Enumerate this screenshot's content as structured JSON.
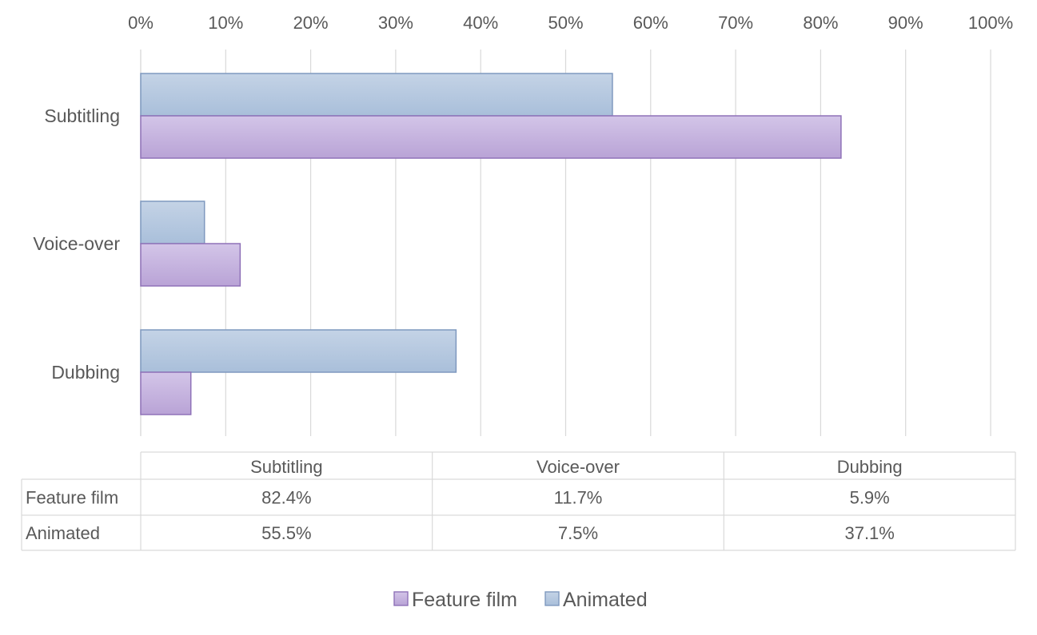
{
  "chart_data": {
    "type": "bar",
    "orientation": "horizontal",
    "categories": [
      "Subtitling",
      "Voice-over",
      "Dubbing"
    ],
    "series": [
      {
        "name": "Feature film",
        "values": [
          82.4,
          11.7,
          5.9
        ],
        "labels": [
          "82.4%",
          "11.7%",
          "5.9%"
        ],
        "color": "#c5b3dd",
        "stroke": "#8f72b8"
      },
      {
        "name": "Animated",
        "values": [
          55.5,
          7.5,
          37.1
        ],
        "labels": [
          "55.5%",
          "7.5%",
          "37.1%"
        ],
        "color": "#b3c6dc",
        "stroke": "#7f99bf"
      }
    ],
    "x_ticks": [
      "0%",
      "10%",
      "20%",
      "30%",
      "40%",
      "50%",
      "60%",
      "70%",
      "80%",
      "90%",
      "100%"
    ],
    "xlim": [
      0,
      100
    ],
    "grid": true,
    "data_table": true,
    "legend_position": "bottom"
  }
}
